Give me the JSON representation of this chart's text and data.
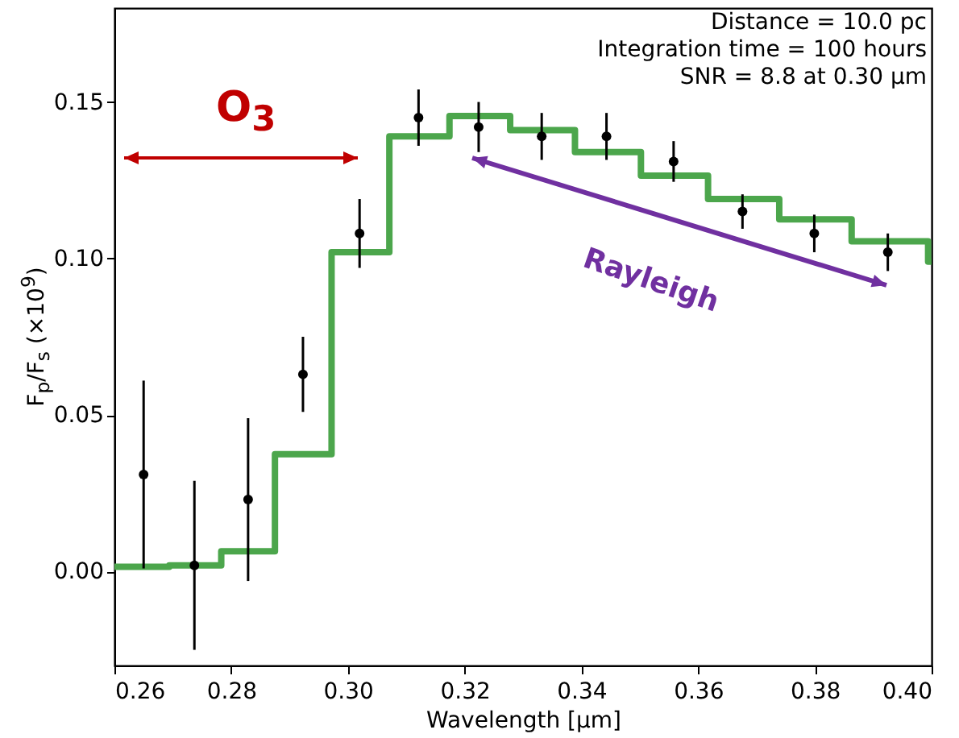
{
  "chart_data": {
    "type": "scatter",
    "xlabel": "Wavelength [μm]",
    "ylabel": "F$_{p}$/F$_{s}$ (×10$^{9}$)",
    "xlim": [
      0.26,
      0.4
    ],
    "ylim": [
      -0.03,
      0.18
    ],
    "xticks": [
      0.26,
      0.28,
      {
        "value": 0.3,
        "label": "0.30"
      },
      0.32,
      0.34,
      0.36,
      0.38,
      {
        "value": 0.4,
        "label": "0.40"
      }
    ],
    "yticks": [
      {
        "value": 0,
        "label": "0.00"
      },
      {
        "value": 0.05,
        "label": "0.05"
      },
      {
        "value": 0.1,
        "label": "0.10"
      },
      {
        "value": 0.15,
        "label": "0.15"
      }
    ],
    "grid": false,
    "series": [
      {
        "type": "step",
        "color": "#4ca64c",
        "marker": "none",
        "x": [
          0.26,
          0.2694,
          0.2783,
          0.2875,
          0.2972,
          0.3071,
          0.3174,
          0.3278,
          0.3389,
          0.3502,
          0.3617,
          0.3739,
          0.3863,
          0.3994,
          0.4
        ],
        "values": [
          0.0015,
          0.002,
          0.0065,
          0.0375,
          0.102,
          0.139,
          0.1455,
          0.141,
          0.134,
          0.1265,
          0.119,
          0.1125,
          0.1055,
          0.099,
          0.099
        ]
      },
      {
        "color": "#000000",
        "marker": "circle",
        "x": [
          0.265,
          0.2737,
          0.2829,
          0.2923,
          0.302,
          0.3121,
          0.3224,
          0.3332,
          0.3443,
          0.3558,
          0.3676,
          0.3799,
          0.3925
        ],
        "values": [
          0.031,
          0.002,
          0.023,
          0.063,
          0.108,
          0.145,
          0.142,
          0.139,
          0.139,
          0.131,
          0.115,
          0.108,
          0.102
        ],
        "errors": [
          0.03,
          0.027,
          0.026,
          0.012,
          0.011,
          0.009,
          0.008,
          0.0075,
          0.0075,
          0.0065,
          0.0055,
          0.006,
          0.006
        ]
      }
    ],
    "annotations": [
      "O$_{3}$",
      "Rayleigh",
      "Distance = 10.0 pc",
      "Integration time = 100 hours",
      "SNR = 8.8 at 0.30 μm"
    ]
  }
}
